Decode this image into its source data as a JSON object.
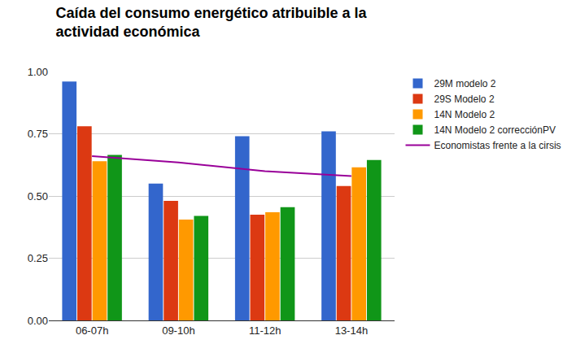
{
  "chart_data": {
    "type": "bar",
    "title": "Caída del consumo energético atribuible a la\nactividad económica",
    "categories": [
      "06-07h",
      "09-10h",
      "11-12h",
      "13-14h"
    ],
    "series": [
      {
        "name": "29M modelo 2",
        "color": "#3366cc",
        "values": [
          0.96,
          0.55,
          0.74,
          0.76
        ]
      },
      {
        "name": "29S Modelo 2",
        "color": "#dc3912",
        "values": [
          0.78,
          0.48,
          0.425,
          0.54
        ]
      },
      {
        "name": "14N Modelo 2",
        "color": "#ff9900",
        "values": [
          0.64,
          0.405,
          0.435,
          0.615
        ]
      },
      {
        "name": "14N Modelo 2 correcciónPV",
        "color": "#109618",
        "values": [
          0.665,
          0.42,
          0.455,
          0.645
        ]
      },
      {
        "name": "Economistas frente a la cirsis",
        "color": "#990099",
        "type": "line",
        "values": [
          0.66,
          0.635,
          0.6,
          0.58
        ]
      }
    ],
    "ylim": [
      0,
      1
    ],
    "yticks": [
      {
        "value": 0,
        "label": "0.00"
      },
      {
        "value": 0.25,
        "label": "0.25"
      },
      {
        "value": 0.5,
        "label": "0.50"
      },
      {
        "value": 0.75,
        "label": "0.75"
      },
      {
        "value": 1,
        "label": "1.00"
      }
    ],
    "grid": true,
    "legend": "right"
  }
}
